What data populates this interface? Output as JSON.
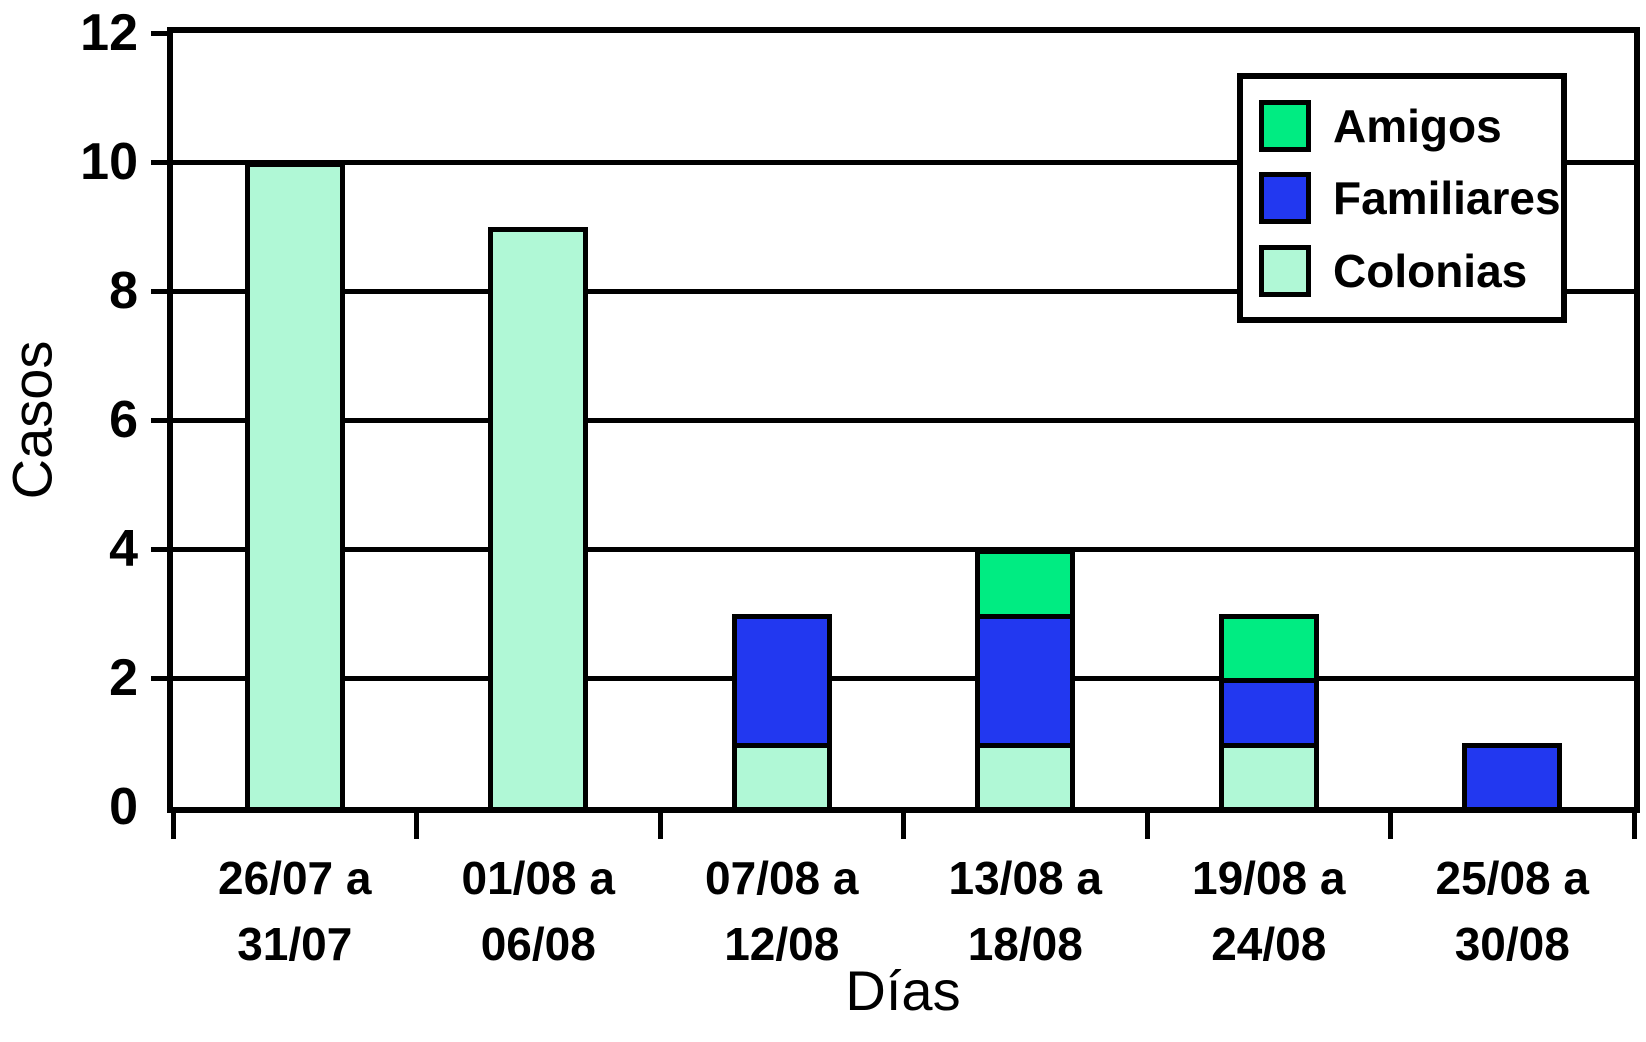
{
  "chart_data": {
    "type": "bar",
    "stacked": true,
    "title": "",
    "xlabel": "Días",
    "ylabel": "Casos",
    "categories": [
      "26/07 a 31/07",
      "01/08 a 06/08",
      "07/08 a 12/08",
      "13/08 a 18/08",
      "19/08 a 24/08",
      "25/08 a 30/08"
    ],
    "series": [
      {
        "name": "Colonias",
        "color": "#B0F8D6",
        "values": [
          10,
          9,
          1,
          1,
          1,
          0
        ]
      },
      {
        "name": "Familiares",
        "color": "#2238F0",
        "values": [
          0,
          0,
          2,
          2,
          1,
          1
        ]
      },
      {
        "name": "Amigos",
        "color": "#00EC82",
        "values": [
          0,
          0,
          0,
          1,
          1,
          0
        ]
      }
    ],
    "stack_order": "bottom-to-top",
    "totals": [
      10,
      9,
      3,
      4,
      3,
      1
    ],
    "ylim": [
      0,
      12
    ],
    "yticks": [
      0,
      2,
      4,
      6,
      8,
      10,
      12
    ],
    "grid": "horizontal",
    "axis_color": "#000000",
    "background_color": "#FFFFFF",
    "legend": {
      "position": "top-right",
      "order": [
        "Amigos",
        "Familiares",
        "Colonias"
      ]
    }
  }
}
